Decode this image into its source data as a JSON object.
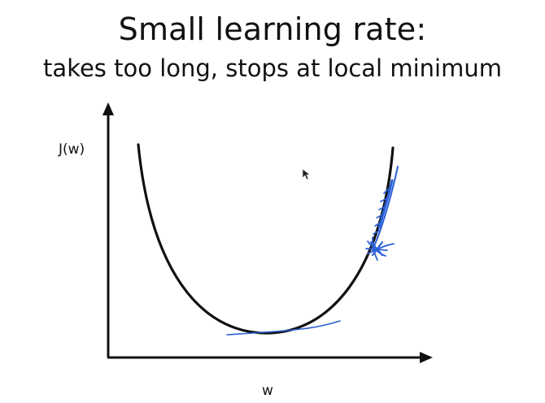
{
  "slide": {
    "title": "Small learning rate:",
    "subtitle": "takes too long, stops at local minimum"
  },
  "diagram": {
    "y_axis_label": "J(w)",
    "x_axis_label": "w",
    "colors": {
      "axes": "#111111",
      "curve": "#111111",
      "annotation": "#2a5fd6"
    }
  }
}
